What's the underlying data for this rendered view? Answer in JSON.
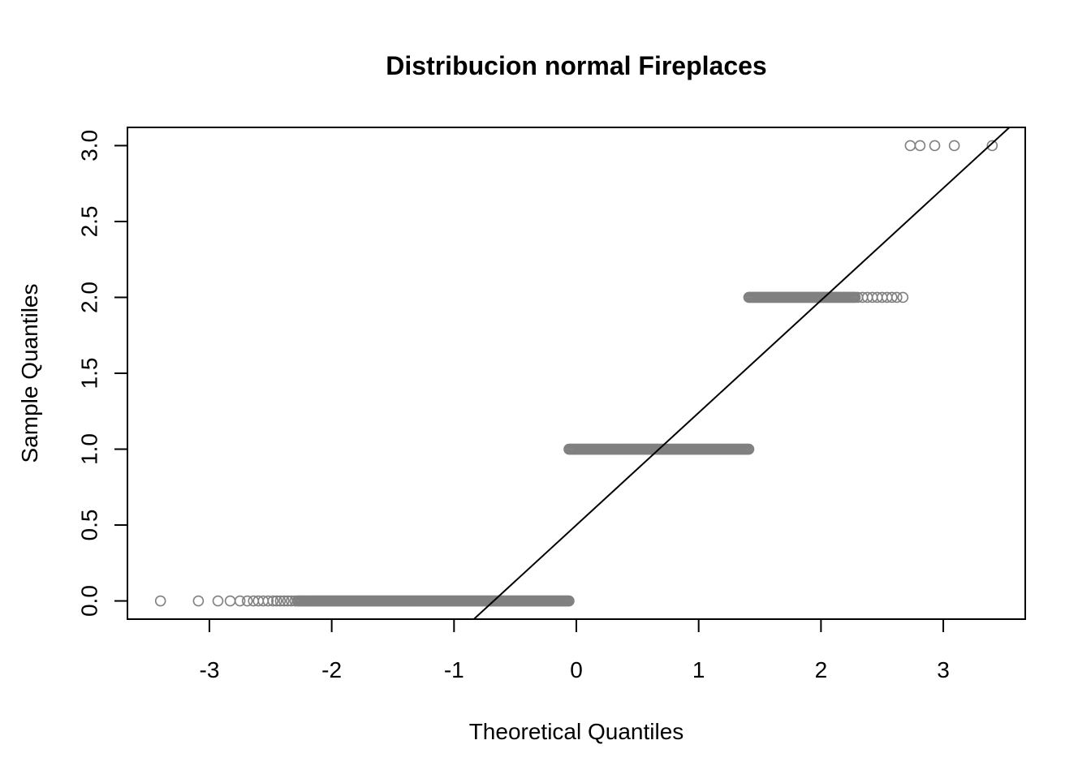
{
  "chart_data": {
    "type": "scatter",
    "title": "Distribucion normal Fireplaces",
    "xlabel": "Theoretical Quantiles",
    "ylabel": "Sample Quantiles",
    "xlim": [
      -3.67,
      3.67
    ],
    "ylim": [
      -0.12,
      3.12
    ],
    "x_ticks": [
      -3,
      -2,
      -1,
      0,
      1,
      2,
      3
    ],
    "x_tick_labels": [
      "-3",
      "-2",
      "-1",
      "0",
      "1",
      "2",
      "3"
    ],
    "y_ticks": [
      0.0,
      0.5,
      1.0,
      1.5,
      2.0,
      2.5,
      3.0
    ],
    "y_tick_labels": [
      "0.0",
      "0.5",
      "1.0",
      "1.5",
      "2.0",
      "2.5",
      "3.0"
    ],
    "grid": false,
    "legend": "none",
    "point_color": "#808080",
    "line_color": "#000000",
    "series": [
      {
        "values": [
          {
            "x": -3.4,
            "y": 0
          },
          {
            "x": -3.09,
            "y": 0
          },
          {
            "x": -2.93,
            "y": 0
          },
          {
            "x": -2.83,
            "y": 0
          },
          {
            "x": -2.75,
            "y": 0
          },
          {
            "x": -2.69,
            "y": 0
          },
          {
            "x": -2.64,
            "y": 0
          },
          {
            "x": -2.6,
            "y": 0
          },
          {
            "x": -2.56,
            "y": 0
          },
          {
            "x": -2.52,
            "y": 0
          },
          {
            "x": -2.48,
            "y": 0
          },
          {
            "x": -2.45,
            "y": 0
          },
          {
            "x": -2.42,
            "y": 0
          },
          {
            "x": -2.39,
            "y": 0
          },
          {
            "x": -2.36,
            "y": 0
          },
          {
            "x": -2.33,
            "y": 0
          },
          {
            "x": -2.3,
            "y": 0
          },
          {
            "x": 2.3,
            "y": 2
          },
          {
            "x": 2.34,
            "y": 2
          },
          {
            "x": 2.38,
            "y": 2
          },
          {
            "x": 2.42,
            "y": 2
          },
          {
            "x": 2.46,
            "y": 2
          },
          {
            "x": 2.5,
            "y": 2
          },
          {
            "x": 2.54,
            "y": 2
          },
          {
            "x": 2.58,
            "y": 2
          },
          {
            "x": 2.62,
            "y": 2
          },
          {
            "x": 2.67,
            "y": 2
          },
          {
            "x": 2.73,
            "y": 3
          },
          {
            "x": 2.81,
            "y": 3
          },
          {
            "x": 2.93,
            "y": 3
          },
          {
            "x": 3.09,
            "y": 3
          },
          {
            "x": 3.4,
            "y": 3
          }
        ],
        "dense_runs": [
          {
            "x_from": -2.28,
            "x_to": -0.06,
            "y": 0
          },
          {
            "x_from": -0.06,
            "x_to": 1.41,
            "y": 1
          },
          {
            "x_from": 1.41,
            "x_to": 2.28,
            "y": 2
          }
        ]
      }
    ],
    "reference_line": {
      "intercept": 0.5,
      "slope": 0.74
    }
  }
}
